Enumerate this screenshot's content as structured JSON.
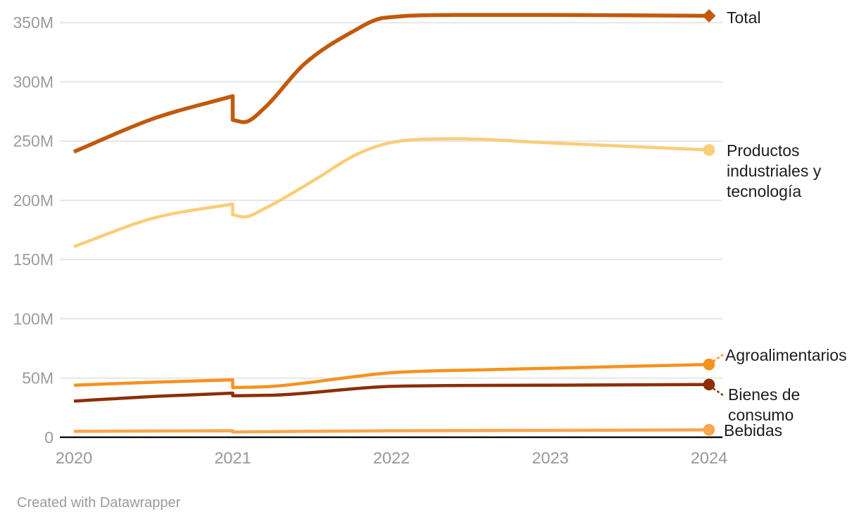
{
  "footer": {
    "credit": "Created with Datawrapper"
  },
  "chart_data": {
    "type": "line",
    "title": "",
    "xlabel": "",
    "ylabel": "",
    "unit": "M",
    "x_range": [
      2020,
      2024
    ],
    "y_range": [
      0,
      350
    ],
    "grid": "horizontal",
    "legend_position": "right-of-lines",
    "x_axis": {
      "ticks": [
        {
          "v": 2020,
          "label": "2020"
        },
        {
          "v": 2021,
          "label": "2021"
        },
        {
          "v": 2022,
          "label": "2022"
        },
        {
          "v": 2023,
          "label": "2023"
        },
        {
          "v": 2024,
          "label": "2024"
        }
      ]
    },
    "y_axis": {
      "ticks": [
        {
          "v": 0,
          "label": "0"
        },
        {
          "v": 50,
          "label": "50M"
        },
        {
          "v": 100,
          "label": "100M"
        },
        {
          "v": 150,
          "label": "150M"
        },
        {
          "v": 200,
          "label": "200M"
        },
        {
          "v": 250,
          "label": "250M"
        },
        {
          "v": 300,
          "label": "300M"
        },
        {
          "v": 350,
          "label": "350M"
        }
      ]
    },
    "break_note": "all series show a vertical step discontinuity at 2021",
    "series": [
      {
        "name": "Total",
        "color": "#C2590C",
        "stroke_width": 5.5,
        "marker": "diamond",
        "end_value": 355.8,
        "segments": [
          [
            [
              2020,
              241
            ],
            [
              2020.5,
              269
            ],
            [
              2021,
              288
            ]
          ],
          [
            [
              2021,
              268
            ],
            [
              2021.07,
              266
            ],
            [
              2021.2,
              278
            ],
            [
              2021.45,
              315
            ],
            [
              2021.75,
              342
            ],
            [
              2021.95,
              354
            ],
            [
              2022.4,
              356.5
            ],
            [
              2023,
              356.5
            ],
            [
              2024,
              355.8
            ]
          ]
        ]
      },
      {
        "name": "Productos industriales y tecnología",
        "color": "#FACD77",
        "stroke_width": 4.5,
        "marker": "circle",
        "end_value": 242.5,
        "segments": [
          [
            [
              2020,
              161
            ],
            [
              2020.5,
              185
            ],
            [
              2021,
              197
            ]
          ],
          [
            [
              2021,
              188
            ],
            [
              2021.07,
              186
            ],
            [
              2021.2,
              193
            ],
            [
              2021.5,
              216
            ],
            [
              2021.8,
              240
            ],
            [
              2022.05,
              250
            ],
            [
              2022.4,
              252
            ],
            [
              2023,
              248.5
            ],
            [
              2024,
              242.5
            ]
          ]
        ]
      },
      {
        "name": "Agroalimentarios",
        "color": "#F6921E",
        "stroke_width": 4.5,
        "marker": "circle",
        "end_value": 61.5,
        "segments": [
          [
            [
              2020,
              44
            ],
            [
              2020.5,
              46.5
            ],
            [
              2021,
              48.5
            ]
          ],
          [
            [
              2021,
              42
            ],
            [
              2021.25,
              43
            ],
            [
              2022,
              54.5
            ],
            [
              2022.6,
              57
            ],
            [
              2023,
              58.3
            ],
            [
              2024,
              61.5
            ]
          ]
        ]
      },
      {
        "name": "Bienes de consumo",
        "color": "#8C2E05",
        "stroke_width": 4.5,
        "marker": "circle",
        "end_value": 44.5,
        "segments": [
          [
            [
              2020,
              30.5
            ],
            [
              2020.5,
              34.5
            ],
            [
              2021,
              37.3
            ]
          ],
          [
            [
              2021,
              35
            ],
            [
              2021.3,
              35.8
            ],
            [
              2022,
              43
            ],
            [
              2022.6,
              43.8
            ],
            [
              2023,
              44
            ],
            [
              2024,
              44.5
            ]
          ]
        ]
      },
      {
        "name": "Bebidas",
        "color": "#F9A650",
        "stroke_width": 4.5,
        "marker": "circle",
        "end_value": 6.3,
        "segments": [
          [
            [
              2020,
              5
            ],
            [
              2020.5,
              5.3
            ],
            [
              2021,
              5.5
            ]
          ],
          [
            [
              2021,
              4.5
            ],
            [
              2022,
              5.5
            ],
            [
              2023,
              5.8
            ],
            [
              2024,
              6.3
            ]
          ]
        ]
      }
    ]
  }
}
